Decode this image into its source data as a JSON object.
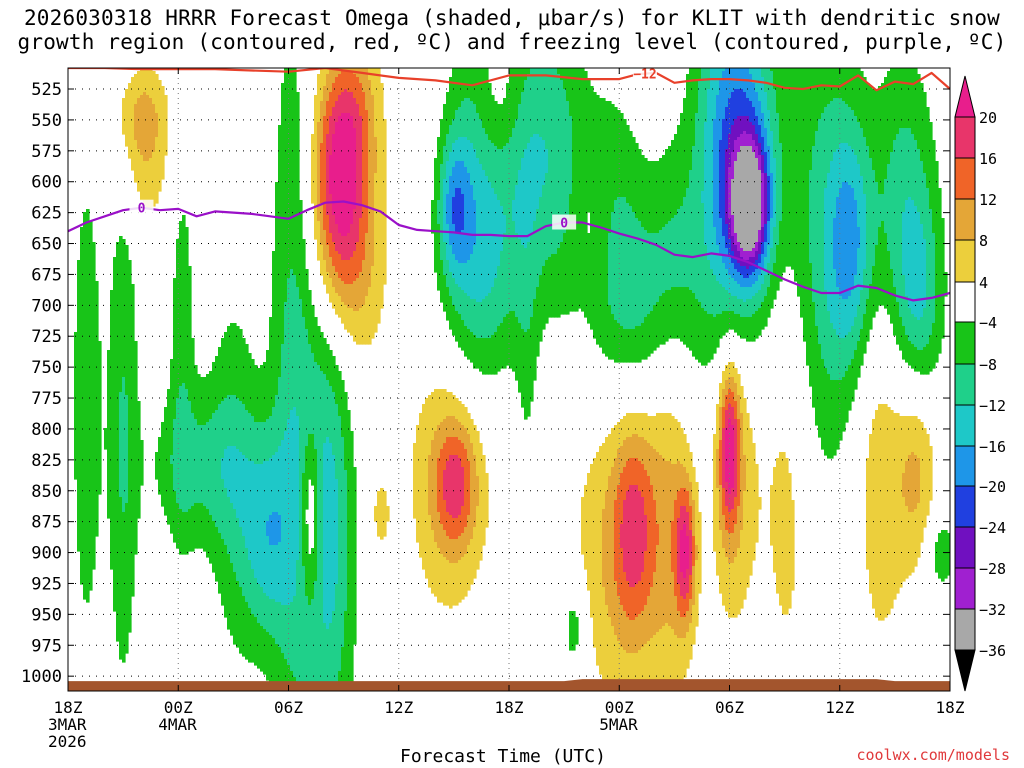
{
  "title": {
    "line1": "2026030318 HRRR Forecast Omega (shaded, μbar/s) for KLIT with dendritic snow",
    "line2": "growth region (contoured, red, ºC) and freezing level (contoured, purple, ºC)"
  },
  "credit": "coolwx.com/models",
  "chart_data": {
    "type": "heatmap",
    "title": "2026030318 HRRR Forecast Omega (shaded, μbar/s) for KLIT with dendritic snow growth region (contoured, red, ºC) and freezing level (contoured, purple, ºC)",
    "xlabel": "Forecast Time (UTC)",
    "ylabel": "",
    "x_range_hours": [
      0,
      48
    ],
    "y_range_hpa": [
      1012,
      508
    ],
    "y_inverted": true,
    "y_ticks": [
      525,
      550,
      575,
      600,
      625,
      650,
      675,
      700,
      725,
      750,
      775,
      800,
      825,
      850,
      875,
      900,
      925,
      950,
      975,
      1000
    ],
    "x_ticks": [
      {
        "hour": 0,
        "lines": [
          "18Z",
          "3MAR",
          "2026"
        ]
      },
      {
        "hour": 6,
        "lines": [
          "00Z",
          "4MAR"
        ]
      },
      {
        "hour": 12,
        "lines": [
          "06Z"
        ]
      },
      {
        "hour": 18,
        "lines": [
          "12Z"
        ]
      },
      {
        "hour": 24,
        "lines": [
          "18Z"
        ]
      },
      {
        "hour": 30,
        "lines": [
          "00Z",
          "5MAR"
        ]
      },
      {
        "hour": 36,
        "lines": [
          "06Z"
        ]
      },
      {
        "hour": 42,
        "lines": [
          "12Z"
        ]
      },
      {
        "hour": 48,
        "lines": [
          "18Z"
        ]
      }
    ],
    "grid": true,
    "colorbar": {
      "labels": [
        "20",
        "16",
        "12",
        "8",
        "4",
        "−4",
        "−8",
        "−12",
        "−16",
        "−20",
        "−24",
        "−28",
        "−32",
        "−36"
      ],
      "levels": [
        20,
        16,
        12,
        8,
        4,
        -4,
        -8,
        -12,
        -16,
        -20,
        -24,
        -28,
        -32,
        -36
      ],
      "colors": [
        "#e8356a",
        "#f06428",
        "#e4a637",
        "#eccf3c",
        "#ffffff",
        "#18c418",
        "#1fd08a",
        "#1ec8c8",
        "#1e96e8",
        "#2040e0",
        "#7010c0",
        "#a020d0",
        "#a8a8a8",
        "#000000"
      ],
      "top_color": "#e81e8c"
    },
    "blobs": [
      {
        "hour": 4.0,
        "hpa": 545,
        "dx": 1.1,
        "dp": 30,
        "value": 9
      },
      {
        "hour": 4.2,
        "hpa": 600,
        "dx": 1.0,
        "dp": 35,
        "value": 5
      },
      {
        "hour": 14.8,
        "hpa": 595,
        "dx": 1.0,
        "dp": 55,
        "value": 18
      },
      {
        "hour": 15.0,
        "hpa": 620,
        "dx": 1.6,
        "dp": 110,
        "value": 7
      },
      {
        "hour": 15.7,
        "hpa": 540,
        "dx": 0.9,
        "dp": 40,
        "value": 5
      },
      {
        "hour": 15.2,
        "hpa": 675,
        "dx": 1.3,
        "dp": 45,
        "value": 5
      },
      {
        "hour": 23.5,
        "hpa": 535,
        "dx": 1.0,
        "dp": 40,
        "value": 5
      },
      {
        "hour": 1.0,
        "hpa": 780,
        "dx": 0.6,
        "dp": 150,
        "value": -7
      },
      {
        "hour": 3.0,
        "hpa": 800,
        "dx": 0.6,
        "dp": 160,
        "value": -8
      },
      {
        "hour": 6.2,
        "hpa": 720,
        "dx": 0.5,
        "dp": 120,
        "value": -6
      },
      {
        "hour": 7.2,
        "hpa": 830,
        "dx": 2.0,
        "dp": 45,
        "value": -8
      },
      {
        "hour": 9.0,
        "hpa": 830,
        "dx": 1.0,
        "dp": 120,
        "value": -6
      },
      {
        "hour": 12.3,
        "hpa": 760,
        "dx": 0.9,
        "dp": 230,
        "value": -10
      },
      {
        "hour": 14.2,
        "hpa": 870,
        "dx": 1.0,
        "dp": 140,
        "value": -14
      },
      {
        "hour": 10.8,
        "hpa": 890,
        "dx": 1.0,
        "dp": 60,
        "value": -12
      },
      {
        "hour": 13.2,
        "hpa": 870,
        "dx": 0.4,
        "dp": 50,
        "value": 12
      },
      {
        "hour": 22.0,
        "hpa": 570,
        "dx": 1.0,
        "dp": 90,
        "value": -8
      },
      {
        "hour": 22.4,
        "hpa": 680,
        "dx": 1.6,
        "dp": 70,
        "value": -10
      },
      {
        "hour": 24.6,
        "hpa": 570,
        "dx": 1.2,
        "dp": 80,
        "value": -9
      },
      {
        "hour": 26.6,
        "hpa": 580,
        "dx": 1.1,
        "dp": 90,
        "value": -8
      },
      {
        "hour": 25.0,
        "hpa": 820,
        "dx": 0.5,
        "dp": 130,
        "value": -6
      },
      {
        "hour": 29.3,
        "hpa": 630,
        "dx": 1.4,
        "dp": 80,
        "value": -8
      },
      {
        "hour": 31.0,
        "hpa": 700,
        "dx": 1.4,
        "dp": 60,
        "value": -7
      },
      {
        "hour": 33.0,
        "hpa": 660,
        "dx": 1.0,
        "dp": 70,
        "value": -7
      },
      {
        "hour": 35.3,
        "hpa": 600,
        "dx": 1.1,
        "dp": 160,
        "value": -10
      },
      {
        "hour": 36.9,
        "hpa": 590,
        "dx": 1.2,
        "dp": 90,
        "value": -20
      },
      {
        "hour": 37.1,
        "hpa": 620,
        "dx": 0.7,
        "dp": 35,
        "value": -27
      },
      {
        "hour": 41.0,
        "hpa": 650,
        "dx": 1.4,
        "dp": 150,
        "value": -9
      },
      {
        "hour": 42.6,
        "hpa": 650,
        "dx": 0.9,
        "dp": 70,
        "value": -14
      },
      {
        "hour": 45.5,
        "hpa": 620,
        "dx": 1.2,
        "dp": 90,
        "value": -10
      },
      {
        "hour": 46.4,
        "hpa": 700,
        "dx": 0.9,
        "dp": 60,
        "value": -9
      },
      {
        "hour": 27.5,
        "hpa": 960,
        "dx": 0.5,
        "dp": 30,
        "value": -8
      },
      {
        "hour": 47.5,
        "hpa": 900,
        "dx": 0.6,
        "dp": 25,
        "value": -7
      },
      {
        "hour": 20.7,
        "hpa": 840,
        "dx": 1.6,
        "dp": 85,
        "value": 8
      },
      {
        "hour": 21.1,
        "hpa": 845,
        "dx": 0.8,
        "dp": 35,
        "value": 12
      },
      {
        "hour": 25.2,
        "hpa": 900,
        "dx": 1.0,
        "dp": 100,
        "value": 5
      },
      {
        "hour": 29.9,
        "hpa": 900,
        "dx": 1.8,
        "dp": 90,
        "value": 8
      },
      {
        "hour": 30.8,
        "hpa": 880,
        "dx": 0.8,
        "dp": 60,
        "value": 12
      },
      {
        "hour": 32.8,
        "hpa": 870,
        "dx": 0.9,
        "dp": 120,
        "value": 7
      },
      {
        "hour": 33.6,
        "hpa": 900,
        "dx": 0.4,
        "dp": 40,
        "value": 17
      },
      {
        "hour": 36.1,
        "hpa": 825,
        "dx": 1.0,
        "dp": 100,
        "value": 10
      },
      {
        "hour": 36.0,
        "hpa": 815,
        "dx": 0.4,
        "dp": 45,
        "value": 18
      },
      {
        "hour": 39.2,
        "hpa": 850,
        "dx": 1.0,
        "dp": 130,
        "value": 6
      },
      {
        "hour": 44.2,
        "hpa": 840,
        "dx": 1.0,
        "dp": 110,
        "value": 7
      },
      {
        "hour": 46.2,
        "hpa": 830,
        "dx": 0.8,
        "dp": 60,
        "value": 9
      },
      {
        "hour": 28.5,
        "hpa": 630,
        "dx": 0.8,
        "dp": 45,
        "value": 5
      },
      {
        "hour": 17.0,
        "hpa": 870,
        "dx": 0.4,
        "dp": 25,
        "value": 5
      },
      {
        "hour": 21.0,
        "hpa": 620,
        "dx": 0.6,
        "dp": 40,
        "value": -12
      }
    ],
    "freezing_level": {
      "label": "0",
      "color": "#9a10c8",
      "hours": [
        0,
        1,
        2,
        3,
        4,
        5,
        6,
        7,
        8,
        9,
        10,
        11,
        12,
        13,
        14,
        15,
        16,
        17,
        18,
        19,
        20,
        21,
        22,
        23,
        24,
        25,
        26,
        27,
        28,
        29,
        30,
        31,
        32,
        33,
        34,
        35,
        36,
        37,
        38,
        39,
        40,
        41,
        42,
        43,
        44,
        45,
        46,
        47,
        48
      ],
      "hpa": [
        640,
        633,
        628,
        623,
        621,
        623,
        622,
        628,
        624,
        625,
        626,
        628,
        630,
        623,
        617,
        616,
        619,
        624,
        635,
        639,
        640,
        641,
        643,
        643,
        644,
        644,
        636,
        633,
        633,
        637,
        642,
        646,
        651,
        659,
        661,
        658,
        660,
        665,
        672,
        679,
        685,
        690,
        690,
        684,
        686,
        692,
        696,
        694,
        690
      ]
    },
    "dgz_minus12": {
      "label": "−12",
      "color": "#e8402a",
      "hours": [
        0,
        2,
        4,
        6,
        8,
        10,
        12,
        14,
        16,
        18,
        20,
        22,
        24,
        26,
        28,
        30,
        31,
        32,
        33,
        34,
        35,
        36,
        37,
        38,
        39,
        40,
        41,
        42,
        43,
        44,
        45,
        46,
        47,
        48
      ],
      "hpa": [
        508,
        508,
        509,
        509,
        509,
        510,
        511,
        508,
        512,
        516,
        518,
        522,
        514,
        514,
        517,
        517,
        513,
        512,
        520,
        518,
        517,
        517,
        518,
        520,
        524,
        525,
        522,
        523,
        514,
        526,
        519,
        521,
        512,
        525
      ]
    }
  }
}
